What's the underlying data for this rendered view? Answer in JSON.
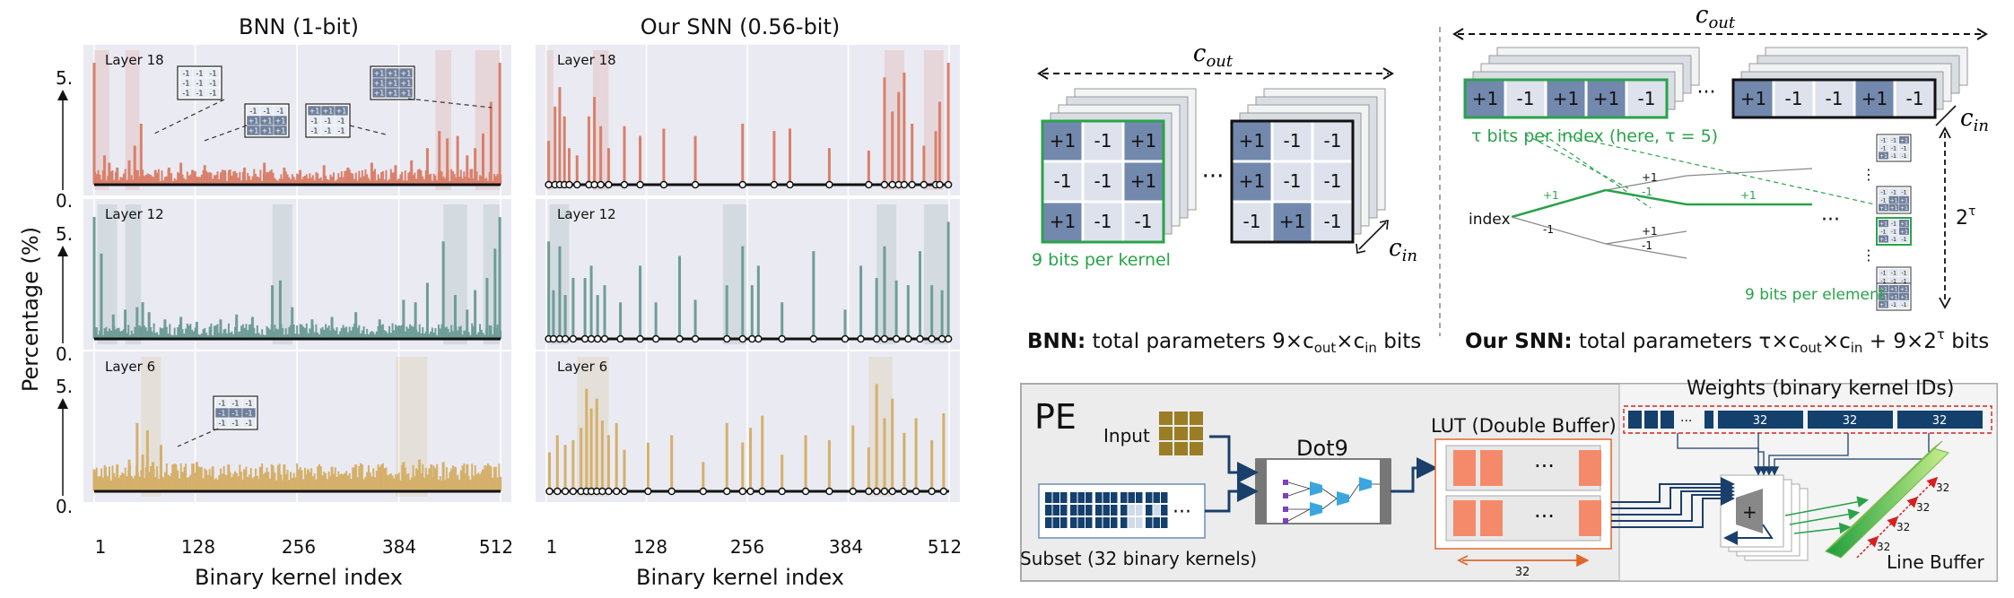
{
  "left": {
    "titles": {
      "bnn": "BNN (1-bit)",
      "snn": "Our SNN (0.56-bit)"
    },
    "ylabel": "Percentage (%)",
    "xlabel": "Binary kernel index",
    "xticks": [
      "1",
      "128",
      "256",
      "384",
      "512"
    ],
    "yticks": [
      "5.",
      "0."
    ],
    "layers": [
      "Layer 18",
      "Layer 12",
      "Layer 6"
    ]
  },
  "chart_data": [
    {
      "type": "bar",
      "title": "BNN (1-bit)",
      "layer": "Layer 18",
      "color": "#d9806b",
      "xlabel": "Binary kernel index",
      "ylabel": "Percentage (%)",
      "xlim": [
        1,
        512
      ],
      "ylim": [
        0,
        5
      ],
      "x": [
        1,
        14,
        20,
        30,
        45,
        52,
        60,
        78,
        95,
        110,
        125,
        140,
        165,
        190,
        215,
        240,
        260,
        290,
        320,
        350,
        380,
        400,
        420,
        435,
        445,
        458,
        470,
        480,
        490,
        500,
        511
      ],
      "values": [
        5.0,
        1.2,
        0.9,
        0.7,
        1.0,
        1.6,
        2.5,
        0.6,
        0.7,
        0.9,
        0.6,
        0.8,
        0.6,
        0.7,
        0.9,
        0.7,
        0.6,
        0.8,
        0.7,
        0.9,
        0.8,
        1.0,
        1.5,
        2.2,
        1.9,
        2.0,
        1.2,
        1.5,
        2.1,
        3.4,
        5.0
      ]
    },
    {
      "type": "bar",
      "title": "BNN (1-bit)",
      "layer": "Layer 12",
      "color": "#6f9d98",
      "xlabel": "Binary kernel index",
      "ylabel": "Percentage (%)",
      "xlim": [
        1,
        512
      ],
      "ylim": [
        0,
        5
      ],
      "x": [
        1,
        10,
        25,
        40,
        55,
        62,
        70,
        90,
        110,
        130,
        160,
        180,
        200,
        225,
        235,
        250,
        275,
        300,
        330,
        360,
        390,
        405,
        420,
        440,
        455,
        470,
        480,
        495,
        505,
        511
      ],
      "values": [
        5.0,
        3.5,
        1.0,
        1.2,
        1.3,
        1.5,
        1.1,
        0.8,
        0.9,
        0.7,
        0.8,
        1.0,
        0.9,
        2.2,
        2.4,
        1.3,
        0.8,
        0.9,
        1.1,
        0.8,
        1.6,
        1.5,
        2.3,
        4.0,
        1.8,
        1.2,
        2.0,
        2.5,
        3.7,
        5.0
      ]
    },
    {
      "type": "bar",
      "title": "BNN (1-bit)",
      "layer": "Layer 6",
      "color": "#d4b06a",
      "xlabel": "Binary kernel index",
      "ylabel": "Percentage (%)",
      "xlim": [
        1,
        512
      ],
      "ylim": [
        0,
        5
      ],
      "x": [
        1,
        15,
        30,
        45,
        55,
        62,
        68,
        75,
        85,
        100,
        115,
        130,
        150,
        170,
        190,
        210,
        240,
        270,
        300,
        330,
        360,
        390,
        410,
        425,
        440,
        455,
        470,
        490,
        505
      ],
      "values": [
        0.9,
        1.0,
        1.1,
        1.3,
        2.8,
        1.5,
        2.5,
        1.2,
        1.9,
        1.1,
        1.0,
        1.2,
        1.0,
        1.1,
        0.9,
        1.0,
        1.1,
        0.9,
        1.0,
        1.1,
        1.0,
        1.2,
        1.3,
        1.1,
        1.2,
        1.0,
        1.1,
        0.9,
        1.0
      ]
    },
    {
      "type": "bar",
      "title": "Our SNN (0.56-bit)",
      "layer": "Layer 18",
      "color": "#d9806b",
      "xlabel": "Binary kernel index",
      "ylabel": "Percentage (%)",
      "xlim": [
        1,
        512
      ],
      "ylim": [
        0,
        5
      ],
      "x": [
        4,
        12,
        18,
        24,
        30,
        40,
        55,
        62,
        70,
        80,
        100,
        120,
        150,
        190,
        250,
        290,
        310,
        360,
        410,
        430,
        440,
        448,
        455,
        465,
        480,
        495,
        500,
        511
      ],
      "values": [
        1.8,
        3.2,
        4.0,
        2.8,
        1.5,
        1.2,
        2.8,
        3.6,
        2.4,
        1.5,
        2.4,
        2.0,
        2.3,
        2.0,
        2.5,
        2.2,
        2.3,
        1.5,
        1.4,
        4.4,
        3.0,
        3.8,
        4.6,
        2.5,
        1.6,
        2.2,
        3.4,
        5.0
      ]
    },
    {
      "type": "bar",
      "title": "Our SNN (0.56-bit)",
      "layer": "Layer 12",
      "color": "#6f9d98",
      "xlabel": "Binary kernel index",
      "ylabel": "Percentage (%)",
      "xlim": [
        1,
        512
      ],
      "ylim": [
        0,
        5
      ],
      "x": [
        4,
        10,
        18,
        25,
        35,
        50,
        58,
        66,
        75,
        95,
        120,
        140,
        170,
        190,
        230,
        250,
        262,
        270,
        300,
        340,
        380,
        400,
        420,
        430,
        445,
        460,
        475,
        490,
        503,
        511
      ],
      "values": [
        4.0,
        2.0,
        3.8,
        1.8,
        2.5,
        2.5,
        3.0,
        1.8,
        2.2,
        1.5,
        3.0,
        1.5,
        3.4,
        1.6,
        2.2,
        3.8,
        2.2,
        3.0,
        1.5,
        3.6,
        1.2,
        3.0,
        2.5,
        3.8,
        2.4,
        2.2,
        3.6,
        2.2,
        2.0,
        4.8
      ]
    },
    {
      "type": "bar",
      "title": "Our SNN (0.56-bit)",
      "layer": "Layer 6",
      "color": "#d4b06a",
      "xlabel": "Binary kernel index",
      "ylabel": "Percentage (%)",
      "xlim": [
        1,
        512
      ],
      "ylim": [
        0,
        5
      ],
      "x": [
        5,
        15,
        25,
        35,
        45,
        52,
        58,
        65,
        72,
        80,
        90,
        100,
        130,
        160,
        200,
        230,
        250,
        260,
        275,
        300,
        330,
        360,
        390,
        410,
        420,
        430,
        440,
        455,
        470,
        490,
        505
      ],
      "values": [
        1.6,
        2.3,
        1.9,
        2.1,
        2.6,
        4.2,
        3.4,
        3.8,
        2.9,
        2.3,
        2.8,
        1.7,
        2.0,
        2.3,
        1.2,
        2.8,
        2.0,
        2.6,
        3.1,
        1.5,
        2.3,
        2.1,
        2.7,
        1.8,
        4.4,
        3.0,
        3.8,
        2.4,
        3.0,
        2.1,
        3.2
      ]
    }
  ],
  "kernels": {
    "k1": [
      "-1 -1 -1",
      "-1 -1 -1",
      "-1 -1 -1"
    ],
    "k2": [
      "-1 -1 -1",
      "+1 +1 +1",
      "+1 +1 +1"
    ],
    "k3": [
      "+1 +1 +1",
      "-1 -1 -1",
      "-1 -1 -1"
    ],
    "k4": [
      "+1 +1 +1",
      "+1 +1 +1",
      "+1 +1 +1"
    ]
  },
  "right": {
    "bnn_grid": [
      [
        "+1",
        "-1",
        "+1"
      ],
      [
        "-1",
        "-1",
        "+1"
      ],
      [
        "+1",
        "-1",
        "-1"
      ]
    ],
    "bnn_grid2": [
      [
        "+1",
        "-1",
        "-1"
      ],
      [
        "+1",
        "-1",
        "-1"
      ],
      [
        "-1",
        "+1",
        "-1"
      ]
    ],
    "c_out": "c",
    "c_out_sub": "out",
    "c_in": "c",
    "c_in_sub": "in",
    "ellipsis": "···",
    "nine_bits_kernel": "9 bits per kernel",
    "snn_row1": [
      "+1",
      "-1",
      "+1",
      "+1",
      "-1"
    ],
    "snn_row2": [
      "+1",
      "-1",
      "-1",
      "+1",
      "-1"
    ],
    "tau_note": "τ bits per index (here, τ = 5)",
    "index_label": "index",
    "edge_pos": "+1",
    "edge_neg": "-1",
    "two_tau": "2",
    "tau_sup": "τ",
    "nine_bits_element": "9 bits per element",
    "bnn_caption_bold": "BNN:",
    "bnn_caption": "total parameters 9×c",
    "bnn_caption_bits": " bits",
    "snn_caption_bold": "Our SNN:",
    "snn_caption": "total parameters τ×c",
    "snn_caption_mid": " + 9×2",
    "snn_caption_bits": " bits"
  },
  "pe": {
    "title": "PE",
    "input_label": "Input",
    "dot9_label": "Dot9",
    "lut_label": "LUT (Double Buffer)",
    "weights_label": "Weights (binary kernel IDs)",
    "weights_segments": [
      "32",
      "32",
      "32"
    ],
    "subset_label": "Subset (32 binary kernels)",
    "lut_width": "32",
    "linebuf_label": "Line Buffer",
    "linebuf_nums": [
      "32",
      "32",
      "32",
      "32"
    ],
    "plus": "+",
    "dots": "···"
  }
}
